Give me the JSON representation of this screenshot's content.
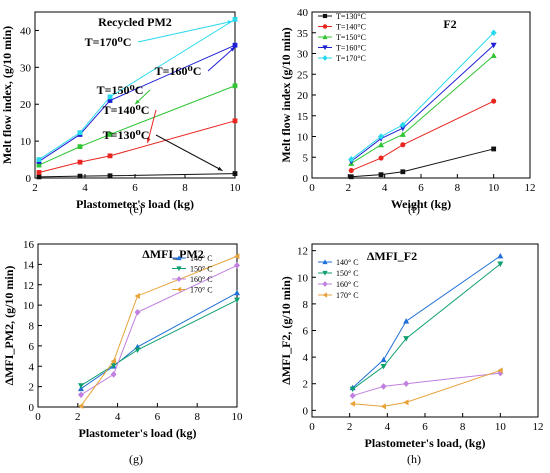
{
  "chart_data": [
    {
      "id": "e",
      "type": "line",
      "subfigure_label": "(e)",
      "title": "Recycled PM2",
      "xlabel": "Plastometer's load (kg)",
      "ylabel": "Melt flow index, (g/10 min)",
      "xlim": [
        2,
        10
      ],
      "ylim": [
        0,
        45
      ],
      "xticks": [
        2,
        4,
        6,
        8,
        10
      ],
      "yticks": [
        0,
        10,
        20,
        30,
        40
      ],
      "grid": false,
      "annotations": [
        {
          "text": "T=170⁰C",
          "series": "T=170°C"
        },
        {
          "text": "T=160⁰C",
          "series": "T=160°C"
        },
        {
          "text": "T=150⁰C",
          "series": "T=150°C"
        },
        {
          "text": "T=140⁰C",
          "series": "T=140°C"
        },
        {
          "text": "T=130⁰C",
          "series": "T=130°C"
        }
      ],
      "series": [
        {
          "name": "T=130°C",
          "color": "#111111",
          "marker": "square",
          "x": [
            2.16,
            3.8,
            5,
            10
          ],
          "y": [
            0.3,
            0.5,
            0.6,
            1.2
          ]
        },
        {
          "name": "T=140°C",
          "color": "#e8251f",
          "marker": "square",
          "x": [
            2.16,
            3.8,
            5,
            10
          ],
          "y": [
            1.5,
            4.3,
            6.0,
            15.5
          ]
        },
        {
          "name": "T=150°C",
          "color": "#2ec433",
          "marker": "square",
          "x": [
            2.16,
            3.8,
            5,
            10
          ],
          "y": [
            3.5,
            8.5,
            11.8,
            25.0
          ]
        },
        {
          "name": "T=160°C",
          "color": "#1f1fd6",
          "marker": "square",
          "x": [
            2.16,
            3.8,
            5,
            10
          ],
          "y": [
            4.5,
            11.8,
            21.0,
            36.0
          ]
        },
        {
          "name": "T=170°C",
          "color": "#29d9ec",
          "marker": "square",
          "x": [
            2.16,
            3.8,
            5,
            10
          ],
          "y": [
            5.0,
            12.3,
            22.0,
            43.0
          ]
        }
      ]
    },
    {
      "id": "f",
      "type": "line",
      "subfigure_label": "(f)",
      "title": "F2",
      "xlabel": "Weight (kg)",
      "ylabel": "Melt flow index (g/10 min)",
      "xlim": [
        0,
        12
      ],
      "ylim": [
        0,
        40
      ],
      "xticks": [
        0,
        2,
        4,
        6,
        8,
        10,
        12
      ],
      "yticks": [
        0,
        5,
        10,
        15,
        20,
        25,
        30,
        35,
        40
      ],
      "grid": false,
      "legend": "top-left",
      "series": [
        {
          "name": "T=130°C",
          "color": "#111111",
          "marker": "square",
          "x": [
            2.16,
            3.8,
            5,
            10
          ],
          "y": [
            0.3,
            0.8,
            1.5,
            7.0
          ]
        },
        {
          "name": "T=140°C",
          "color": "#e8251f",
          "marker": "circle",
          "x": [
            2.16,
            3.8,
            5,
            10
          ],
          "y": [
            1.8,
            4.8,
            8.0,
            18.5
          ]
        },
        {
          "name": "T=150°C",
          "color": "#2ec433",
          "marker": "triangle-up",
          "x": [
            2.16,
            3.8,
            5,
            10
          ],
          "y": [
            3.5,
            8.0,
            10.5,
            29.5
          ]
        },
        {
          "name": "T=160°C",
          "color": "#1f1fd6",
          "marker": "triangle-down",
          "x": [
            2.16,
            3.8,
            5,
            10
          ],
          "y": [
            4.0,
            9.5,
            12.0,
            32.0
          ]
        },
        {
          "name": "T=170°C",
          "color": "#29d9ec",
          "marker": "diamond",
          "x": [
            2.16,
            3.8,
            5,
            10
          ],
          "y": [
            4.5,
            10.0,
            12.8,
            35.0
          ]
        }
      ]
    },
    {
      "id": "g",
      "type": "line",
      "subfigure_label": "(g)",
      "title": "ΔMFI_PM2",
      "xlabel": "Plastometer's load (kg)",
      "ylabel": "ΔMFI_PM2, (g/10 min)",
      "xlim": [
        0,
        10
      ],
      "ylim": [
        0,
        16
      ],
      "xticks": [
        0,
        2,
        4,
        6,
        8,
        10
      ],
      "yticks": [
        0,
        2,
        4,
        6,
        8,
        10,
        12,
        14,
        16
      ],
      "grid": false,
      "legend": "top-right",
      "series": [
        {
          "name": "140° C",
          "color": "#1f6fd6",
          "marker": "triangle-up",
          "x": [
            2.16,
            3.8,
            5,
            10
          ],
          "y": [
            1.8,
            4.0,
            5.9,
            11.2
          ]
        },
        {
          "name": "150° C",
          "color": "#0e9f6e",
          "marker": "triangle-down",
          "x": [
            2.16,
            3.8,
            5,
            10
          ],
          "y": [
            2.1,
            4.1,
            5.6,
            10.5
          ]
        },
        {
          "name": "160° C",
          "color": "#c080e0",
          "marker": "diamond",
          "x": [
            2.16,
            3.8,
            5,
            10
          ],
          "y": [
            1.2,
            3.2,
            9.3,
            13.9
          ]
        },
        {
          "name": "170° C",
          "color": "#e8a33a",
          "marker": "triangle-left",
          "x": [
            2.16,
            3.8,
            5,
            10
          ],
          "y": [
            0.1,
            4.5,
            10.9,
            14.8
          ]
        }
      ]
    },
    {
      "id": "h",
      "type": "line",
      "subfigure_label": "(h)",
      "title": "ΔMFI_F2",
      "xlabel": "Plastometer's load, (kg)",
      "ylabel": "ΔMFI_F2, (g/10 min)",
      "xlim": [
        0,
        12
      ],
      "ylim": [
        -0.5,
        12.5
      ],
      "xticks": [
        0,
        2,
        4,
        6,
        8,
        10,
        12
      ],
      "yticks": [
        0,
        2,
        4,
        6,
        8,
        10,
        12
      ],
      "grid": false,
      "legend": "top-left",
      "series": [
        {
          "name": "140° C",
          "color": "#1f6fd6",
          "marker": "triangle-up",
          "x": [
            2.16,
            3.8,
            5,
            10
          ],
          "y": [
            1.7,
            3.8,
            6.7,
            11.6
          ]
        },
        {
          "name": "150° C",
          "color": "#0e9f6e",
          "marker": "triangle-down",
          "x": [
            2.16,
            3.8,
            5,
            10
          ],
          "y": [
            1.6,
            3.3,
            5.4,
            11.0
          ]
        },
        {
          "name": "160° C",
          "color": "#c080e0",
          "marker": "diamond",
          "x": [
            2.16,
            3.8,
            5,
            10
          ],
          "y": [
            1.1,
            1.8,
            2.0,
            2.8
          ]
        },
        {
          "name": "170° C",
          "color": "#e8a33a",
          "marker": "triangle-left",
          "x": [
            2.16,
            3.8,
            5,
            10
          ],
          "y": [
            0.5,
            0.3,
            0.6,
            3.0
          ]
        }
      ]
    }
  ]
}
